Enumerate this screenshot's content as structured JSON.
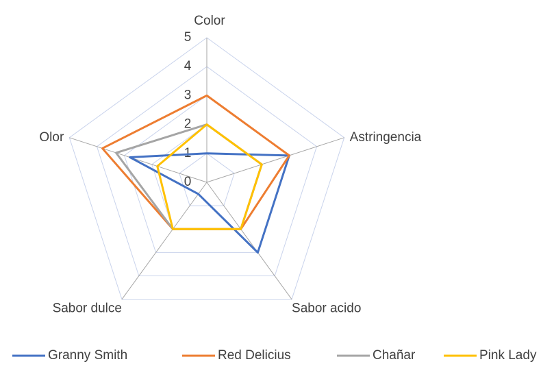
{
  "chart_data": {
    "type": "radar",
    "categories": [
      "Color",
      "Astringencia",
      "Sabor acido",
      "Sabor dulce",
      "Olor"
    ],
    "series": [
      {
        "name": "Granny Smith",
        "color": "#4472c4",
        "values": [
          1,
          3,
          3,
          0.5,
          2.8
        ]
      },
      {
        "name": "Red Delicius",
        "color": "#ed7d31",
        "values": [
          3,
          3,
          2,
          2,
          3.8
        ]
      },
      {
        "name": "Chañar",
        "color": "#a5a5a5",
        "values": [
          2,
          2,
          2,
          2,
          3.3
        ]
      },
      {
        "name": "Pink Lady",
        "color": "#ffc000",
        "values": [
          2,
          2,
          2,
          2,
          1.8
        ]
      }
    ],
    "ylim": [
      0,
      5
    ],
    "yticks": [
      0,
      1,
      2,
      3,
      4,
      5
    ],
    "grid": true,
    "legend": "bottom"
  }
}
